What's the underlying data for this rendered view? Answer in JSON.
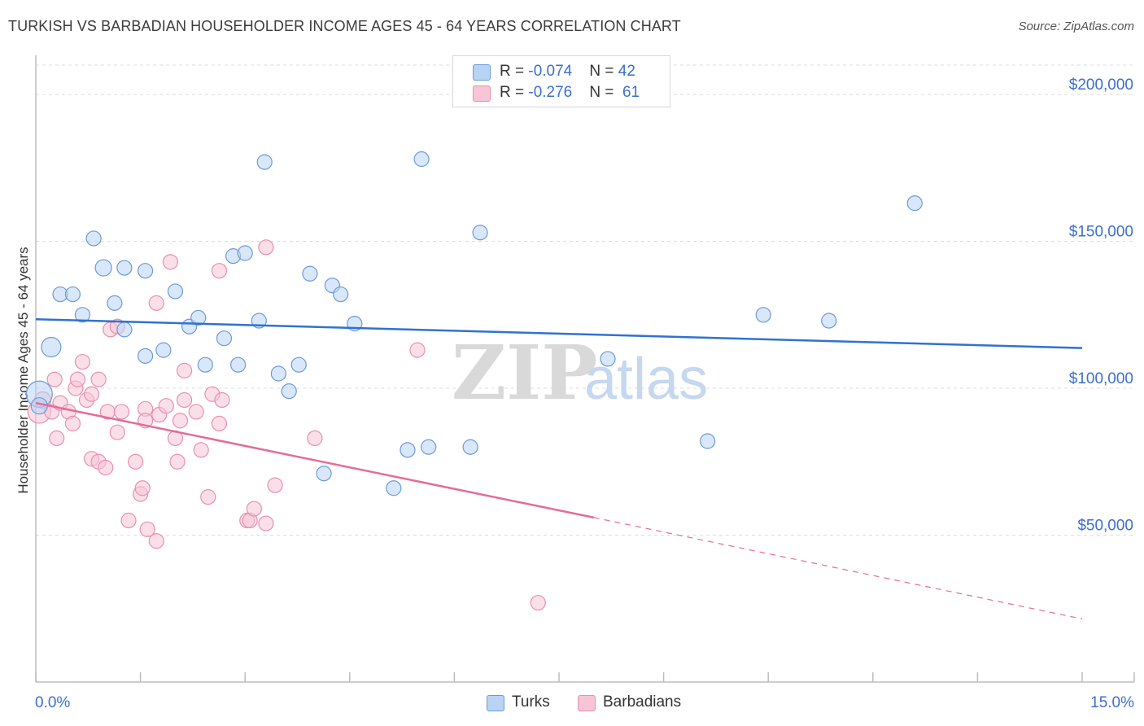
{
  "header": {
    "title": "TURKISH VS BARBADIAN HOUSEHOLDER INCOME AGES 45 - 64 YEARS CORRELATION CHART",
    "source": "Source: ZipAtlas.com"
  },
  "watermark": "ZIPatlas",
  "legend": {
    "rows": [
      {
        "r_label": "R = ",
        "r_value": "-0.074",
        "n_label": "N = ",
        "n_value": "42"
      },
      {
        "r_label": "R = ",
        "r_value": "-0.276",
        "n_label": "N = ",
        "n_value": "61"
      }
    ],
    "bottom": [
      "Turks",
      "Barbadians"
    ]
  },
  "colors": {
    "turks_fill": "#b9d3f5",
    "turks_stroke": "#6a9bd8",
    "turks_line": "#2f72d2",
    "barb_fill": "#f8c5d6",
    "barb_stroke": "#e890ae",
    "barb_line": "#e36c98",
    "axis_text": "#3c6fce",
    "grid": "#dcdcdc"
  },
  "chart_data": {
    "type": "scatter",
    "title": "TURKISH VS BARBADIAN HOUSEHOLDER INCOME AGES 45 - 64 YEARS CORRELATION CHART",
    "xlabel": "",
    "ylabel": "Householder Income Ages 45 - 64 years",
    "xlim": [
      0,
      15
    ],
    "ylim": [
      0,
      210000
    ],
    "x_tick_labels": [
      "0.0%",
      "15.0%"
    ],
    "y_ticks": [
      {
        "value": 50000,
        "label": "$50,000"
      },
      {
        "value": 100000,
        "label": "$100,000"
      },
      {
        "value": 150000,
        "label": "$150,000"
      },
      {
        "value": 200000,
        "label": "$200,000"
      }
    ],
    "series": [
      {
        "name": "Turks",
        "r": -0.074,
        "n": 42,
        "trend": {
          "x0": 0,
          "y0": 123500,
          "x1": 15,
          "y1": 113700
        },
        "points": [
          [
            0.05,
            98000,
            16
          ],
          [
            0.05,
            94000,
            10
          ],
          [
            0.22,
            114000,
            12
          ],
          [
            0.35,
            132000,
            9
          ],
          [
            0.53,
            132000,
            9
          ],
          [
            0.67,
            125000,
            9
          ],
          [
            0.83,
            151000,
            9
          ],
          [
            0.97,
            141000,
            10
          ],
          [
            1.13,
            129000,
            9
          ],
          [
            1.27,
            120000,
            9
          ],
          [
            1.27,
            141000,
            9
          ],
          [
            1.57,
            140000,
            9
          ],
          [
            1.57,
            111000,
            9
          ],
          [
            1.83,
            113000,
            9
          ],
          [
            2.0,
            133000,
            9
          ],
          [
            2.2,
            121000,
            9
          ],
          [
            2.33,
            124000,
            9
          ],
          [
            2.43,
            108000,
            9
          ],
          [
            2.7,
            117000,
            9
          ],
          [
            2.83,
            145000,
            9
          ],
          [
            2.9,
            108000,
            9
          ],
          [
            3.0,
            146000,
            9
          ],
          [
            3.2,
            123000,
            9
          ],
          [
            3.28,
            177000,
            9
          ],
          [
            3.48,
            105000,
            9
          ],
          [
            3.63,
            99000,
            9
          ],
          [
            3.77,
            108000,
            9
          ],
          [
            3.93,
            139000,
            9
          ],
          [
            4.13,
            71000,
            9
          ],
          [
            4.25,
            135000,
            9
          ],
          [
            4.37,
            132000,
            9
          ],
          [
            4.57,
            122000,
            9
          ],
          [
            5.13,
            66000,
            9
          ],
          [
            5.33,
            79000,
            9
          ],
          [
            5.53,
            178000,
            9
          ],
          [
            5.63,
            80000,
            9
          ],
          [
            6.23,
            80000,
            9
          ],
          [
            6.37,
            153000,
            9
          ],
          [
            8.2,
            110000,
            9
          ],
          [
            9.63,
            82000,
            9
          ],
          [
            10.43,
            125000,
            9
          ],
          [
            11.37,
            123000,
            9
          ],
          [
            12.6,
            163000,
            9
          ]
        ]
      },
      {
        "name": "Barbadians",
        "r": -0.276,
        "n": 61,
        "trend": {
          "x0": 0,
          "y0": 95000,
          "x1": 8.0,
          "y1": 56000,
          "dash_x1": 15,
          "dash_y1": 21500
        },
        "points": [
          [
            0.05,
            92000,
            14
          ],
          [
            0.1,
            96000,
            10
          ],
          [
            0.23,
            92000,
            9
          ],
          [
            0.27,
            103000,
            9
          ],
          [
            0.3,
            83000,
            9
          ],
          [
            0.35,
            95000,
            9
          ],
          [
            0.47,
            92000,
            9
          ],
          [
            0.53,
            88000,
            9
          ],
          [
            0.57,
            100000,
            9
          ],
          [
            0.6,
            103000,
            9
          ],
          [
            0.67,
            109000,
            9
          ],
          [
            0.73,
            96000,
            9
          ],
          [
            0.8,
            76000,
            9
          ],
          [
            0.8,
            98000,
            9
          ],
          [
            0.9,
            75000,
            9
          ],
          [
            0.9,
            103000,
            9
          ],
          [
            1.0,
            73000,
            9
          ],
          [
            1.03,
            92000,
            9
          ],
          [
            1.07,
            120000,
            9
          ],
          [
            1.17,
            85000,
            9
          ],
          [
            1.17,
            121000,
            9
          ],
          [
            1.23,
            92000,
            9
          ],
          [
            1.33,
            55000,
            9
          ],
          [
            1.43,
            75000,
            9
          ],
          [
            1.5,
            64000,
            9
          ],
          [
            1.53,
            66000,
            9
          ],
          [
            1.57,
            93000,
            9
          ],
          [
            1.57,
            89000,
            9
          ],
          [
            1.6,
            52000,
            9
          ],
          [
            1.73,
            48000,
            9
          ],
          [
            1.73,
            129000,
            9
          ],
          [
            1.77,
            91000,
            9
          ],
          [
            1.87,
            94000,
            9
          ],
          [
            1.93,
            143000,
            9
          ],
          [
            2.0,
            83000,
            9
          ],
          [
            2.03,
            75000,
            9
          ],
          [
            2.07,
            89000,
            9
          ],
          [
            2.13,
            96000,
            9
          ],
          [
            2.13,
            106000,
            9
          ],
          [
            2.3,
            92000,
            9
          ],
          [
            2.37,
            79000,
            9
          ],
          [
            2.47,
            63000,
            9
          ],
          [
            2.53,
            98000,
            9
          ],
          [
            2.63,
            88000,
            9
          ],
          [
            2.63,
            140000,
            9
          ],
          [
            2.67,
            96000,
            9
          ],
          [
            3.03,
            55000,
            9
          ],
          [
            3.07,
            55000,
            9
          ],
          [
            3.13,
            59000,
            9
          ],
          [
            3.3,
            148000,
            9
          ],
          [
            3.3,
            54000,
            9
          ],
          [
            3.43,
            67000,
            9
          ],
          [
            4.0,
            83000,
            9
          ],
          [
            5.47,
            113000,
            9
          ],
          [
            7.2,
            27000,
            9
          ]
        ]
      }
    ]
  }
}
